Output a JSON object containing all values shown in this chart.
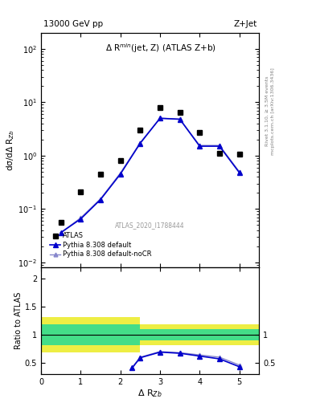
{
  "title_left": "13000 GeV pp",
  "title_right": "Z+Jet",
  "plot_title": "Δ R$^{min}$(jet, Z) (ATLAS Z+b)",
  "ylabel_main": "dσ/dΔ R$_{Zb}$",
  "ylabel_ratio": "Ratio to ATLAS",
  "xlabel": "Δ R$_{Zb}$",
  "right_label_top": "Rivet 3.1.10, ≥ 3.5M events",
  "right_label_bot": "mcplots.cern.ch [arXiv:1306.3436]",
  "watermark": "ATLAS_2020_I1788444",
  "atlas_x": [
    0.5,
    1.0,
    1.5,
    2.0,
    2.5,
    3.0,
    3.5,
    4.0,
    4.5,
    5.0
  ],
  "atlas_y": [
    0.055,
    0.21,
    0.45,
    0.8,
    3.0,
    8.0,
    6.5,
    2.7,
    1.1,
    1.05
  ],
  "pythia_default_x": [
    0.5,
    1.0,
    1.5,
    2.0,
    2.5,
    3.0,
    3.5,
    4.0,
    4.5,
    5.0
  ],
  "pythia_default_y": [
    0.036,
    0.065,
    0.15,
    0.45,
    1.7,
    5.0,
    4.8,
    1.5,
    1.5,
    0.48
  ],
  "pythia_nocr_x": [
    0.5,
    1.0,
    1.5,
    2.0,
    2.5,
    3.0,
    3.5,
    4.0,
    4.5,
    5.0
  ],
  "pythia_nocr_y": [
    0.036,
    0.068,
    0.155,
    0.47,
    1.75,
    5.05,
    4.85,
    1.55,
    1.55,
    0.5
  ],
  "ratio_default_x": [
    2.3,
    2.5,
    3.0,
    3.5,
    4.0,
    4.5,
    5.0
  ],
  "ratio_default_y": [
    0.41,
    0.59,
    0.69,
    0.67,
    0.62,
    0.57,
    0.43
  ],
  "ratio_nocr_x": [
    2.3,
    2.5,
    3.0,
    3.5,
    4.0,
    4.5,
    5.0
  ],
  "ratio_nocr_y": [
    0.42,
    0.6,
    0.7,
    0.68,
    0.64,
    0.6,
    0.46
  ],
  "band_x1": 0.0,
  "band_x2": 2.5,
  "band_x3": 5.5,
  "band_green_ylo1": 0.82,
  "band_green_yhi1": 1.18,
  "band_green_ylo2": 0.9,
  "band_green_yhi2": 1.1,
  "band_yellow_ylo1": 0.68,
  "band_yellow_yhi1": 1.32,
  "band_yellow_ylo2": 0.82,
  "band_yellow_yhi2": 1.18,
  "ylim_main": [
    0.008,
    200
  ],
  "ylim_ratio": [
    0.3,
    2.2
  ],
  "xlim": [
    0,
    5.5
  ],
  "color_default": "#0000cc",
  "color_nocr": "#8888cc",
  "color_atlas": "black",
  "color_green": "#44dd88",
  "color_yellow": "#eeee44"
}
